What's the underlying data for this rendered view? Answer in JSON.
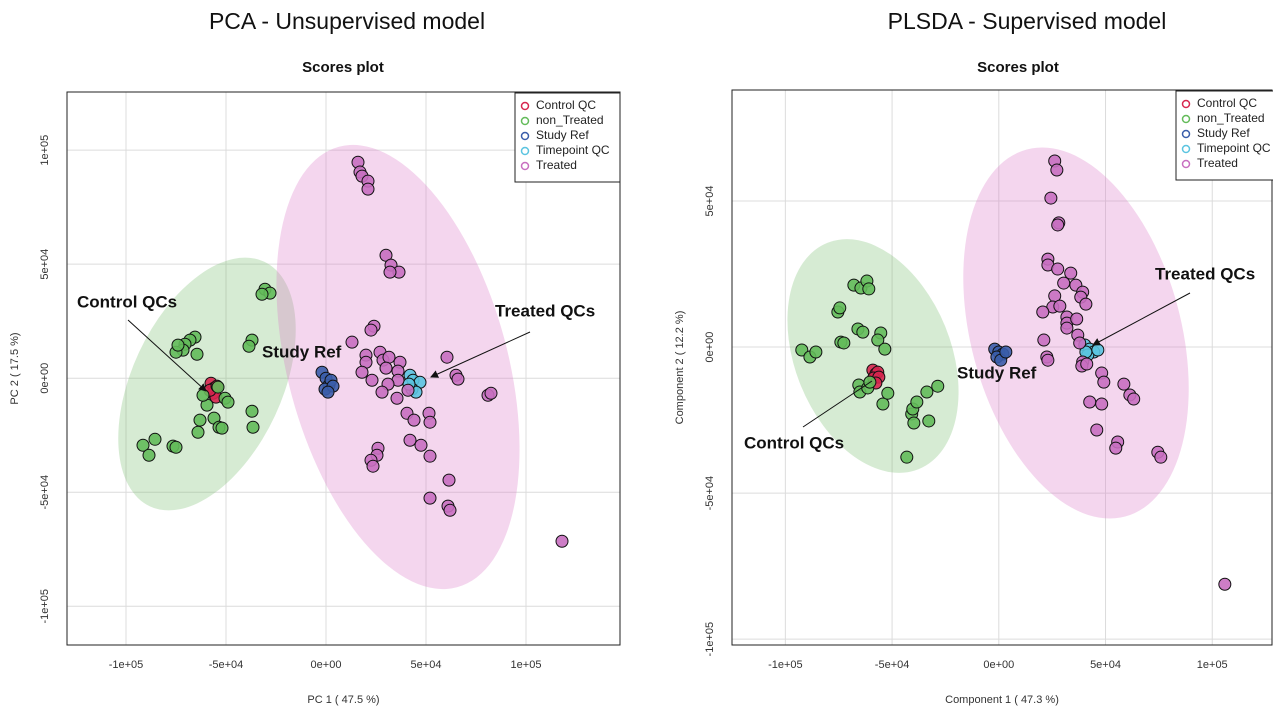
{
  "chart_data": [
    {
      "type": "scatter",
      "title": "PCA - Unsupervised model",
      "subtitle": "Scores plot",
      "xlabel": "PC 1 ( 47.5 %)",
      "ylabel": "PC 2 ( 17.5 %)",
      "annotations": [
        "Control QCs",
        "Study Ref",
        "Treated QCs"
      ],
      "xlim": [
        -129500,
        147000
      ],
      "ylim": [
        -117000,
        125500
      ],
      "grid": true,
      "xticks": [
        {
          "value": -100000,
          "label": "-1e+05"
        },
        {
          "value": -50000,
          "label": "-5e+04"
        },
        {
          "value": 0,
          "label": "0e+00"
        },
        {
          "value": 50000,
          "label": "5e+04"
        },
        {
          "value": 100000,
          "label": "1e+05"
        }
      ],
      "yticks": [
        {
          "value": -100000,
          "label": "-1e+05"
        },
        {
          "value": -50000,
          "label": "-5e+04"
        },
        {
          "value": 0,
          "label": "0e+00"
        },
        {
          "value": 50000,
          "label": "5e+04"
        },
        {
          "value": 100000,
          "label": "1e+05"
        }
      ],
      "series": [
        {
          "name": "Control QC",
          "color": "#d7264f",
          "x": [
            -57500,
            -56000,
            -56500,
            -55000,
            -58000,
            -54500
          ],
          "y": [
            -2200,
            -4400,
            -6600,
            -8300,
            -5300,
            -3500
          ]
        },
        {
          "name": "non_Treated",
          "color": "#63bb5a",
          "x": [
            -30500,
            -28000,
            -32000,
            -37000,
            -38500,
            -65500,
            -68000,
            -70500,
            -64500,
            -71500,
            -75000,
            -74000,
            -54000,
            -50500,
            -49000,
            -59500,
            -63000,
            -56000,
            -53500,
            -52000,
            -37000,
            -36500,
            -64000,
            -76500,
            -75000,
            -85500,
            -91500,
            -88500,
            -61500
          ],
          "y": [
            39000,
            37300,
            36800,
            16700,
            14000,
            18000,
            16700,
            14900,
            10500,
            12300,
            11400,
            14500,
            -3900,
            -8800,
            -10500,
            -11800,
            -18400,
            -17500,
            -21500,
            -21900,
            -14500,
            -21500,
            -23700,
            -29800,
            -30300,
            -26800,
            -29400,
            -33800,
            -7500
          ]
        },
        {
          "name": "Study Ref",
          "color": "#3a5daa",
          "x": [
            -2000,
            0,
            1500,
            2500,
            -500,
            3500,
            1000
          ],
          "y": [
            2600,
            0,
            -3100,
            -900,
            -4800,
            -3500,
            -6100
          ]
        },
        {
          "name": "Timepoint QC",
          "color": "#5bc4e0",
          "x": [
            42000,
            43500,
            47000,
            43000,
            45000,
            41500
          ],
          "y": [
            1300,
            -900,
            -1800,
            -4800,
            -6100,
            -2600
          ]
        },
        {
          "name": "Treated",
          "color": "#c86fc0",
          "x": [
            16000,
            17000,
            18000,
            21000,
            21000,
            30000,
            32500,
            36500,
            32000,
            24000,
            22500,
            13000,
            20000,
            27000,
            20000,
            28500,
            31500,
            37000,
            36000,
            30000,
            36000,
            31000,
            28000,
            23000,
            18000,
            35500,
            40500,
            44000,
            51500,
            52000,
            42000,
            47500,
            52000,
            26000,
            25500,
            22500,
            23500,
            52000,
            61500,
            61000,
            62000,
            60500,
            65000,
            66000,
            81000,
            82500,
            118000,
            41000
          ],
          "y": [
            94700,
            90400,
            88600,
            86400,
            82900,
            53900,
            49600,
            46500,
            46500,
            22800,
            21100,
            15800,
            10100,
            11400,
            7000,
            7900,
            9200,
            7000,
            3100,
            4400,
            -900,
            -2600,
            -6100,
            -900,
            2600,
            -8800,
            -15400,
            -18400,
            -15400,
            -19300,
            -27200,
            -29400,
            -34200,
            -30700,
            -33800,
            -36000,
            -38600,
            -52600,
            -44700,
            -56100,
            -57900,
            9200,
            1300,
            -400,
            -7500,
            -6600,
            -71500,
            -5300
          ]
        }
      ]
    },
    {
      "type": "scatter",
      "title": "PLSDA - Supervised model",
      "subtitle": "Scores plot",
      "xlabel": "Component 1 ( 47.3 %)",
      "ylabel": "Component 2 ( 12.2 %)",
      "annotations": [
        "Control QCs",
        "Study Ref",
        "Treated QCs"
      ],
      "xlim": [
        -125000,
        128000
      ],
      "ylim": [
        -102000,
        88000
      ],
      "grid": true,
      "xticks": [
        {
          "value": -100000,
          "label": "-1e+05"
        },
        {
          "value": -50000,
          "label": "-5e+04"
        },
        {
          "value": 0,
          "label": "0e+00"
        },
        {
          "value": 50000,
          "label": "5e+04"
        },
        {
          "value": 100000,
          "label": "1e+05"
        }
      ],
      "yticks": [
        {
          "value": -100000,
          "label": "-1e+05"
        },
        {
          "value": -50000,
          "label": "-5e+04"
        },
        {
          "value": 0,
          "label": "0e+00"
        },
        {
          "value": 50000,
          "label": "5e+04"
        }
      ],
      "series": [
        {
          "name": "Control QC",
          "color": "#d7264f",
          "x": [
            -59000,
            -57600,
            -56700,
            -58600,
            -56200,
            -57600
          ],
          "y": [
            -7900,
            -9200,
            -8600,
            -10600,
            -10300,
            -12300
          ]
        },
        {
          "name": "non_Treated",
          "color": "#63bb5a",
          "x": [
            -92300,
            -88500,
            -85700,
            -75400,
            -74500,
            -74000,
            -72600,
            -67900,
            -64600,
            -61800,
            -60900,
            -66000,
            -63700,
            -55300,
            -56700,
            -53400,
            -65600,
            -65100,
            -61400,
            -60400,
            -54300,
            -52000,
            -40800,
            -40300,
            -38400,
            -39800,
            -32800,
            -33700,
            -28600,
            -43100
          ],
          "y": [
            -1000,
            -3400,
            -1700,
            12000,
            13400,
            1700,
            1400,
            21200,
            20200,
            22600,
            19900,
            6200,
            5100,
            4800,
            2400,
            -700,
            -13000,
            -15400,
            -14000,
            -12000,
            -19500,
            -15800,
            -22900,
            -21200,
            -18800,
            -26000,
            -25300,
            -15400,
            -13400,
            -37700
          ]
        },
        {
          "name": "Study Ref",
          "color": "#3a5daa",
          "x": [
            -1900,
            0,
            1900,
            -900,
            900,
            3300
          ],
          "y": [
            -700,
            -1700,
            -2400,
            -3400,
            -4500,
            -1700
          ]
        },
        {
          "name": "Timepoint QC",
          "color": "#5bc4e0",
          "x": [
            40300,
            42600,
            44500,
            41700,
            46400,
            40800
          ],
          "y": [
            700,
            -700,
            -1700,
            -2700,
            -1000,
            -1700
          ]
        },
        {
          "name": "Treated",
          "color": "#c86fc0",
          "x": [
            26200,
            27200,
            24400,
            28100,
            27600,
            23000,
            23000,
            27600,
            33700,
            36100,
            39300,
            38400,
            30400,
            26200,
            25300,
            20600,
            31900,
            31900,
            31900,
            36500,
            37000,
            21100,
            22500,
            23000,
            37900,
            39300,
            38900,
            41200,
            48200,
            49200,
            42600,
            48200,
            58600,
            61400,
            63200,
            45900,
            55700,
            54800,
            74500,
            75900,
            105900,
            28600,
            40800
          ],
          "y": [
            63700,
            60600,
            51000,
            42500,
            41800,
            30100,
            28100,
            26700,
            25300,
            21200,
            18800,
            17100,
            21900,
            17500,
            13700,
            12000,
            10300,
            8200,
            6500,
            9600,
            4100,
            2400,
            -3400,
            -4500,
            1400,
            -5100,
            -6500,
            -5800,
            -8900,
            -12000,
            -18800,
            -19500,
            -12700,
            -16400,
            -17800,
            -28400,
            -32500,
            -34600,
            -36000,
            -37700,
            -81200,
            14000,
            14700
          ]
        }
      ]
    }
  ]
}
